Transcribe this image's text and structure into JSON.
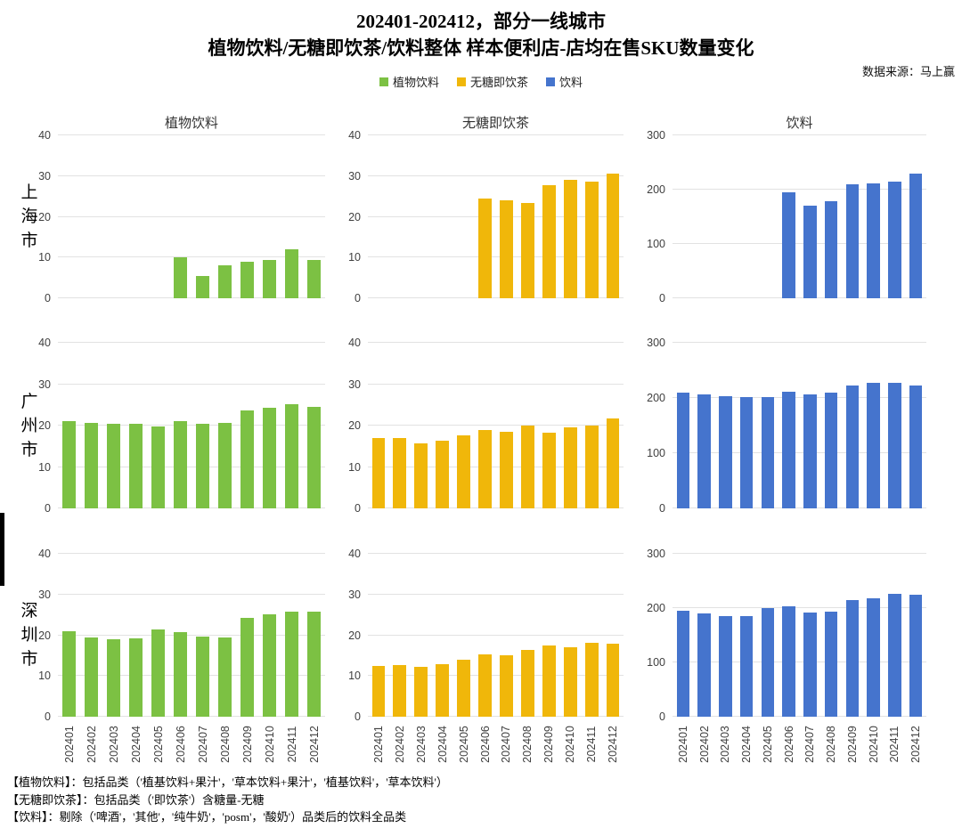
{
  "header": {
    "title_line1": "202401-202412，部分一线城市",
    "title_line2": "植物饮料/无糖即饮茶/饮料整体 样本便利店-店均在售SKU数量变化",
    "source": "数据来源：马上赢"
  },
  "footnotes": [
    "【植物饮料】：包括品类（'植基饮料+果汁'，'草本饮料+果汁'，'植基饮料'，'草本饮料'）",
    "【无糖即饮茶】：包括品类（'即饮茶'）含糖量-无糖",
    "【饮料】：剔除（'啤酒'，'其他'，'纯牛奶'，'posm'，'酸奶'）品类后的饮料全品类"
  ],
  "chart_data": {
    "type": "bar",
    "grid": true,
    "categories": [
      "202401",
      "202402",
      "202403",
      "202404",
      "202405",
      "202406",
      "202407",
      "202408",
      "202409",
      "202410",
      "202411",
      "202412"
    ],
    "columns": [
      {
        "title": "植物饮料",
        "color": "#7cc143",
        "ymax": 40,
        "yticks": [
          0,
          10,
          20,
          30,
          40
        ]
      },
      {
        "title": "无糖即饮茶",
        "color": "#f0b70a",
        "ymax": 40,
        "yticks": [
          0,
          10,
          20,
          30,
          40
        ]
      },
      {
        "title": "饮料",
        "color": "#4574cd",
        "ymax": 300,
        "yticks": [
          0,
          100,
          200,
          300
        ]
      }
    ],
    "rows": [
      {
        "city": "上海市",
        "series": [
          {
            "name": "植物饮料",
            "values": [
              null,
              null,
              null,
              null,
              null,
              10,
              5.5,
              8,
              9,
              9.5,
              12,
              9.5
            ]
          },
          {
            "name": "无糖即饮茶",
            "values": [
              null,
              null,
              null,
              null,
              null,
              24.5,
              24,
              23.5,
              27.8,
              29,
              28.7,
              30.5
            ]
          },
          {
            "name": "饮料",
            "values": [
              null,
              null,
              null,
              null,
              null,
              195,
              170,
              178,
              210,
              212,
              215,
              229
            ]
          }
        ]
      },
      {
        "city": "广州市",
        "series": [
          {
            "name": "植物饮料",
            "values": [
              21.1,
              20.6,
              20.5,
              20.4,
              19.8,
              21,
              20.5,
              20.6,
              23.6,
              24.2,
              25.1,
              24.5
            ]
          },
          {
            "name": "无糖即饮茶",
            "values": [
              17,
              17.1,
              15.8,
              16.3,
              17.6,
              19,
              18.6,
              20,
              18.3,
              19.5,
              20,
              21.7
            ]
          },
          {
            "name": "饮料",
            "values": [
              210,
              206,
              204,
              202,
              201,
              212,
              207,
              209,
              222,
              227,
              228,
              223
            ]
          }
        ]
      },
      {
        "city": "深圳市",
        "series": [
          {
            "name": "植物饮料",
            "values": [
              20.9,
              19.4,
              19,
              19.2,
              21.4,
              20.8,
              19.7,
              19.5,
              24.2,
              25.2,
              25.9,
              25.7
            ]
          },
          {
            "name": "无糖即饮茶",
            "values": [
              12.4,
              12.6,
              12.2,
              12.8,
              14,
              15.2,
              15,
              16.5,
              17.5,
              17,
              18.2,
              18
            ]
          },
          {
            "name": "饮料",
            "values": [
              195,
              191,
              185,
              186,
              200,
              203,
              192,
              193,
              215,
              218,
              226,
              224
            ]
          }
        ]
      }
    ]
  }
}
